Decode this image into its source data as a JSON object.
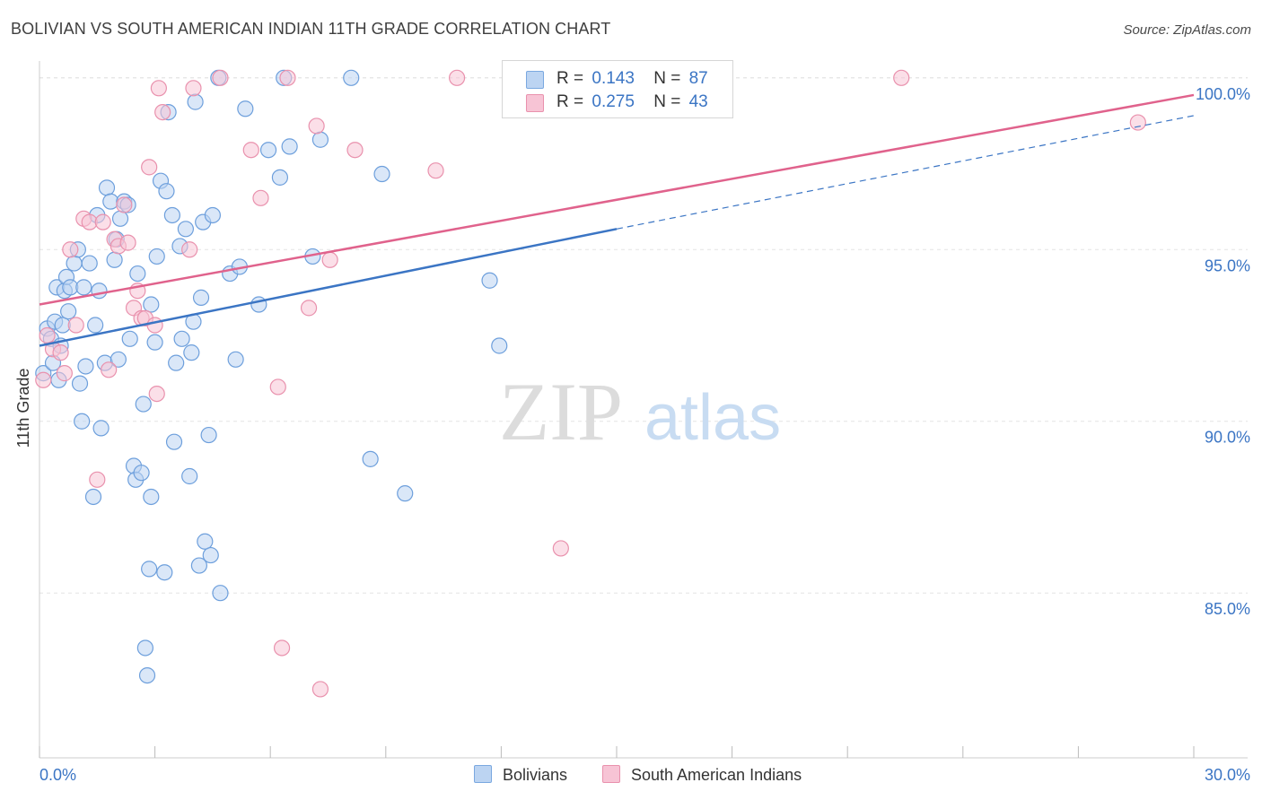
{
  "header": {
    "title": "BOLIVIAN VS SOUTH AMERICAN INDIAN 11TH GRADE CORRELATION CHART",
    "source": "Source: ZipAtlas.com"
  },
  "watermark": {
    "zip": "ZIP",
    "atlas": "atlas"
  },
  "legend": {
    "r_label": "R =",
    "n_label": "N =",
    "series": [
      {
        "name": "Bolivians",
        "r": "0.143",
        "n": "87",
        "color": "#7aa8e0",
        "fill": "#bcd4f2"
      },
      {
        "name": "South American Indians",
        "r": "0.275",
        "n": "43",
        "color": "#e991ad",
        "fill": "#f7c4d5"
      }
    ]
  },
  "chart_data": {
    "type": "scatter",
    "title": "BOLIVIAN VS SOUTH AMERICAN INDIAN 11TH GRADE CORRELATION CHART",
    "xlabel": "",
    "ylabel": "11th Grade",
    "xlim": [
      0,
      30
    ],
    "ylim": [
      80.2,
      100.7
    ],
    "x_tick_labels": [
      "0.0%",
      "30.0%"
    ],
    "y_ticks": [
      85,
      90,
      95,
      100
    ],
    "y_tick_labels": [
      "85.0%",
      "90.0%",
      "95.0%",
      "100.0%"
    ],
    "grid": true,
    "series": [
      {
        "name": "Bolivians",
        "color": "#3b75c4",
        "points": [
          [
            0.1,
            91.4
          ],
          [
            0.2,
            92.7
          ],
          [
            0.3,
            92.4
          ],
          [
            0.35,
            91.7
          ],
          [
            0.4,
            92.9
          ],
          [
            0.45,
            93.9
          ],
          [
            0.5,
            91.2
          ],
          [
            0.55,
            92.2
          ],
          [
            0.6,
            92.8
          ],
          [
            0.65,
            93.8
          ],
          [
            0.7,
            94.2
          ],
          [
            0.75,
            93.2
          ],
          [
            0.8,
            93.9
          ],
          [
            0.9,
            94.6
          ],
          [
            1.0,
            95.0
          ],
          [
            1.05,
            91.1
          ],
          [
            1.1,
            90.0
          ],
          [
            1.15,
            93.9
          ],
          [
            1.2,
            91.6
          ],
          [
            1.3,
            94.6
          ],
          [
            1.4,
            87.8
          ],
          [
            1.45,
            92.8
          ],
          [
            1.5,
            96.0
          ],
          [
            1.55,
            93.8
          ],
          [
            1.6,
            89.8
          ],
          [
            1.7,
            91.7
          ],
          [
            1.75,
            96.8
          ],
          [
            1.85,
            96.4
          ],
          [
            1.95,
            94.7
          ],
          [
            2.0,
            95.3
          ],
          [
            2.05,
            91.8
          ],
          [
            2.1,
            95.9
          ],
          [
            2.2,
            96.4
          ],
          [
            2.3,
            96.3
          ],
          [
            2.35,
            92.4
          ],
          [
            2.45,
            88.7
          ],
          [
            2.5,
            88.3
          ],
          [
            2.55,
            94.3
          ],
          [
            2.65,
            88.5
          ],
          [
            2.7,
            90.5
          ],
          [
            2.75,
            83.4
          ],
          [
            2.8,
            82.6
          ],
          [
            2.85,
            85.7
          ],
          [
            2.9,
            87.8
          ],
          [
            3.0,
            92.3
          ],
          [
            3.05,
            94.8
          ],
          [
            3.15,
            97.0
          ],
          [
            3.25,
            85.6
          ],
          [
            3.3,
            96.7
          ],
          [
            3.35,
            99.0
          ],
          [
            3.45,
            96.0
          ],
          [
            3.55,
            91.7
          ],
          [
            3.65,
            95.1
          ],
          [
            3.7,
            92.4
          ],
          [
            3.8,
            95.6
          ],
          [
            3.9,
            88.4
          ],
          [
            3.95,
            92.0
          ],
          [
            4.0,
            92.9
          ],
          [
            4.05,
            99.3
          ],
          [
            4.15,
            85.8
          ],
          [
            4.2,
            93.6
          ],
          [
            4.25,
            95.8
          ],
          [
            4.3,
            86.5
          ],
          [
            4.4,
            89.6
          ],
          [
            4.45,
            86.1
          ],
          [
            4.5,
            96.0
          ],
          [
            4.65,
            100.0
          ],
          [
            4.7,
            85.0
          ],
          [
            4.95,
            94.3
          ],
          [
            5.1,
            91.8
          ],
          [
            5.2,
            94.5
          ],
          [
            5.35,
            99.1
          ],
          [
            5.7,
            93.4
          ],
          [
            5.95,
            97.9
          ],
          [
            6.25,
            97.1
          ],
          [
            6.35,
            100.0
          ],
          [
            6.5,
            98.0
          ],
          [
            7.1,
            94.8
          ],
          [
            7.3,
            98.2
          ],
          [
            8.1,
            100.0
          ],
          [
            8.6,
            88.9
          ],
          [
            8.9,
            97.2
          ],
          [
            9.5,
            87.9
          ],
          [
            11.7,
            94.1
          ],
          [
            11.95,
            92.2
          ],
          [
            3.5,
            89.4
          ],
          [
            2.9,
            93.4
          ]
        ],
        "trend": {
          "x": [
            0,
            15
          ],
          "y": [
            92.2,
            95.6
          ]
        },
        "trend_dashed": {
          "x": [
            15,
            30
          ],
          "y": [
            95.6,
            98.9
          ]
        }
      },
      {
        "name": "South American Indians",
        "color": "#e0628c",
        "points": [
          [
            0.1,
            91.2
          ],
          [
            0.2,
            92.5
          ],
          [
            0.35,
            92.1
          ],
          [
            0.55,
            92.0
          ],
          [
            0.65,
            91.4
          ],
          [
            0.8,
            95.0
          ],
          [
            0.95,
            92.8
          ],
          [
            1.15,
            95.9
          ],
          [
            1.3,
            95.8
          ],
          [
            1.5,
            88.3
          ],
          [
            1.65,
            95.8
          ],
          [
            1.8,
            91.5
          ],
          [
            1.95,
            95.3
          ],
          [
            2.05,
            95.1
          ],
          [
            2.2,
            96.3
          ],
          [
            2.3,
            95.2
          ],
          [
            2.45,
            93.3
          ],
          [
            2.55,
            93.8
          ],
          [
            2.65,
            93.0
          ],
          [
            2.75,
            93.0
          ],
          [
            2.85,
            97.4
          ],
          [
            3.0,
            92.8
          ],
          [
            3.05,
            90.8
          ],
          [
            3.1,
            99.7
          ],
          [
            3.2,
            99.0
          ],
          [
            3.9,
            95.0
          ],
          [
            4.0,
            99.7
          ],
          [
            4.7,
            100.0
          ],
          [
            5.5,
            97.9
          ],
          [
            5.75,
            96.5
          ],
          [
            6.2,
            91.0
          ],
          [
            6.3,
            83.4
          ],
          [
            6.45,
            100.0
          ],
          [
            7.0,
            93.3
          ],
          [
            7.2,
            98.6
          ],
          [
            7.3,
            82.2
          ],
          [
            7.55,
            94.7
          ],
          [
            8.2,
            97.9
          ],
          [
            10.3,
            97.3
          ],
          [
            10.85,
            100.0
          ],
          [
            13.55,
            86.3
          ],
          [
            22.4,
            100.0
          ],
          [
            28.55,
            98.7
          ]
        ],
        "trend": {
          "x": [
            0,
            30
          ],
          "y": [
            93.4,
            99.5
          ]
        }
      }
    ]
  }
}
